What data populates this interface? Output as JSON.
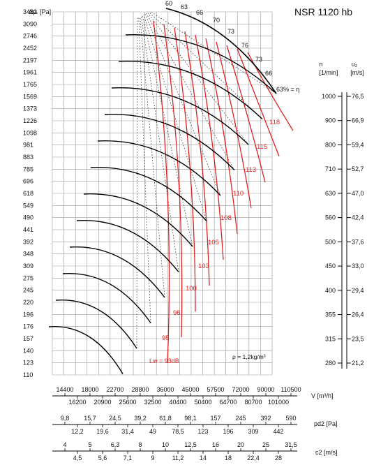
{
  "chart_data": {
    "type": "line",
    "title": "NSR 1120 hb",
    "ylabel_main": "Δpₜ [Pa]",
    "y_ticks": [
      "3482",
      "3090",
      "2746",
      "2452",
      "2197",
      "1961",
      "1765",
      "1569",
      "1373",
      "1226",
      "1098",
      "981",
      "883",
      "785",
      "696",
      "618",
      "549",
      "490",
      "441",
      "392",
      "348",
      "309",
      "275",
      "245",
      "220",
      "196",
      "176",
      "157",
      "140",
      "123",
      "110"
    ],
    "n_label": "n",
    "n_unit": "[1/min]",
    "n_ticks": [
      "1000",
      "900",
      "800",
      "710",
      "630",
      "560",
      "500",
      "450",
      "400",
      "355",
      "315",
      "280"
    ],
    "u2_label": "u₂",
    "u2_unit": "[m/s]",
    "u2_ticks": [
      "76,5",
      "66,9",
      "59,4",
      "52,7",
      "47,0",
      "42,4",
      "37,6",
      "33,0",
      "29,4",
      "26,4",
      "23,5",
      "21,2"
    ],
    "efficiency_labels": [
      "60",
      "63",
      "66",
      "70",
      "73",
      "76",
      "73",
      "66"
    ],
    "efficiency_edge_label": "63% = η",
    "lw_labels": [
      "118",
      "115",
      "113",
      "110",
      "108",
      "105",
      "103",
      "100",
      "98",
      "95"
    ],
    "lw_first_label": "Lw = 93dB",
    "rho_label": "ρ = 1,2kg/m³",
    "flow_axis": {
      "label": "V [m³/h]",
      "top": [
        "14400",
        "18000",
        "22700",
        "28800",
        "36000",
        "45000",
        "57500",
        "72000",
        "90000",
        "110500"
      ],
      "bottom": [
        "16200",
        "20900",
        "25600",
        "32500",
        "40400",
        "50400",
        "64700",
        "80700",
        "101000"
      ]
    },
    "pd2_axis": {
      "label": "pd2 [Pa]",
      "top": [
        "9,8",
        "15,7",
        "24,5",
        "39,2",
        "61,8",
        "98,1",
        "157",
        "245",
        "392",
        "590"
      ],
      "bottom": [
        "12,2",
        "19,6",
        "31,4",
        "49",
        "78,5",
        "123",
        "196",
        "309",
        "442"
      ]
    },
    "c2_axis": {
      "label": "c2 [m/s]",
      "top": [
        "4",
        "5",
        "6,3",
        "8",
        "10",
        "12,5",
        "16",
        "20",
        "25",
        "31,5"
      ],
      "bottom": [
        "4,5",
        "5,6",
        "7,1",
        "9",
        "11,2",
        "14",
        "18",
        "22,4",
        "28"
      ]
    },
    "colors": {
      "curve": "#000000",
      "noise": "#e02020",
      "grid": "#9a9a9a",
      "noise_text": "#e02020"
    }
  }
}
